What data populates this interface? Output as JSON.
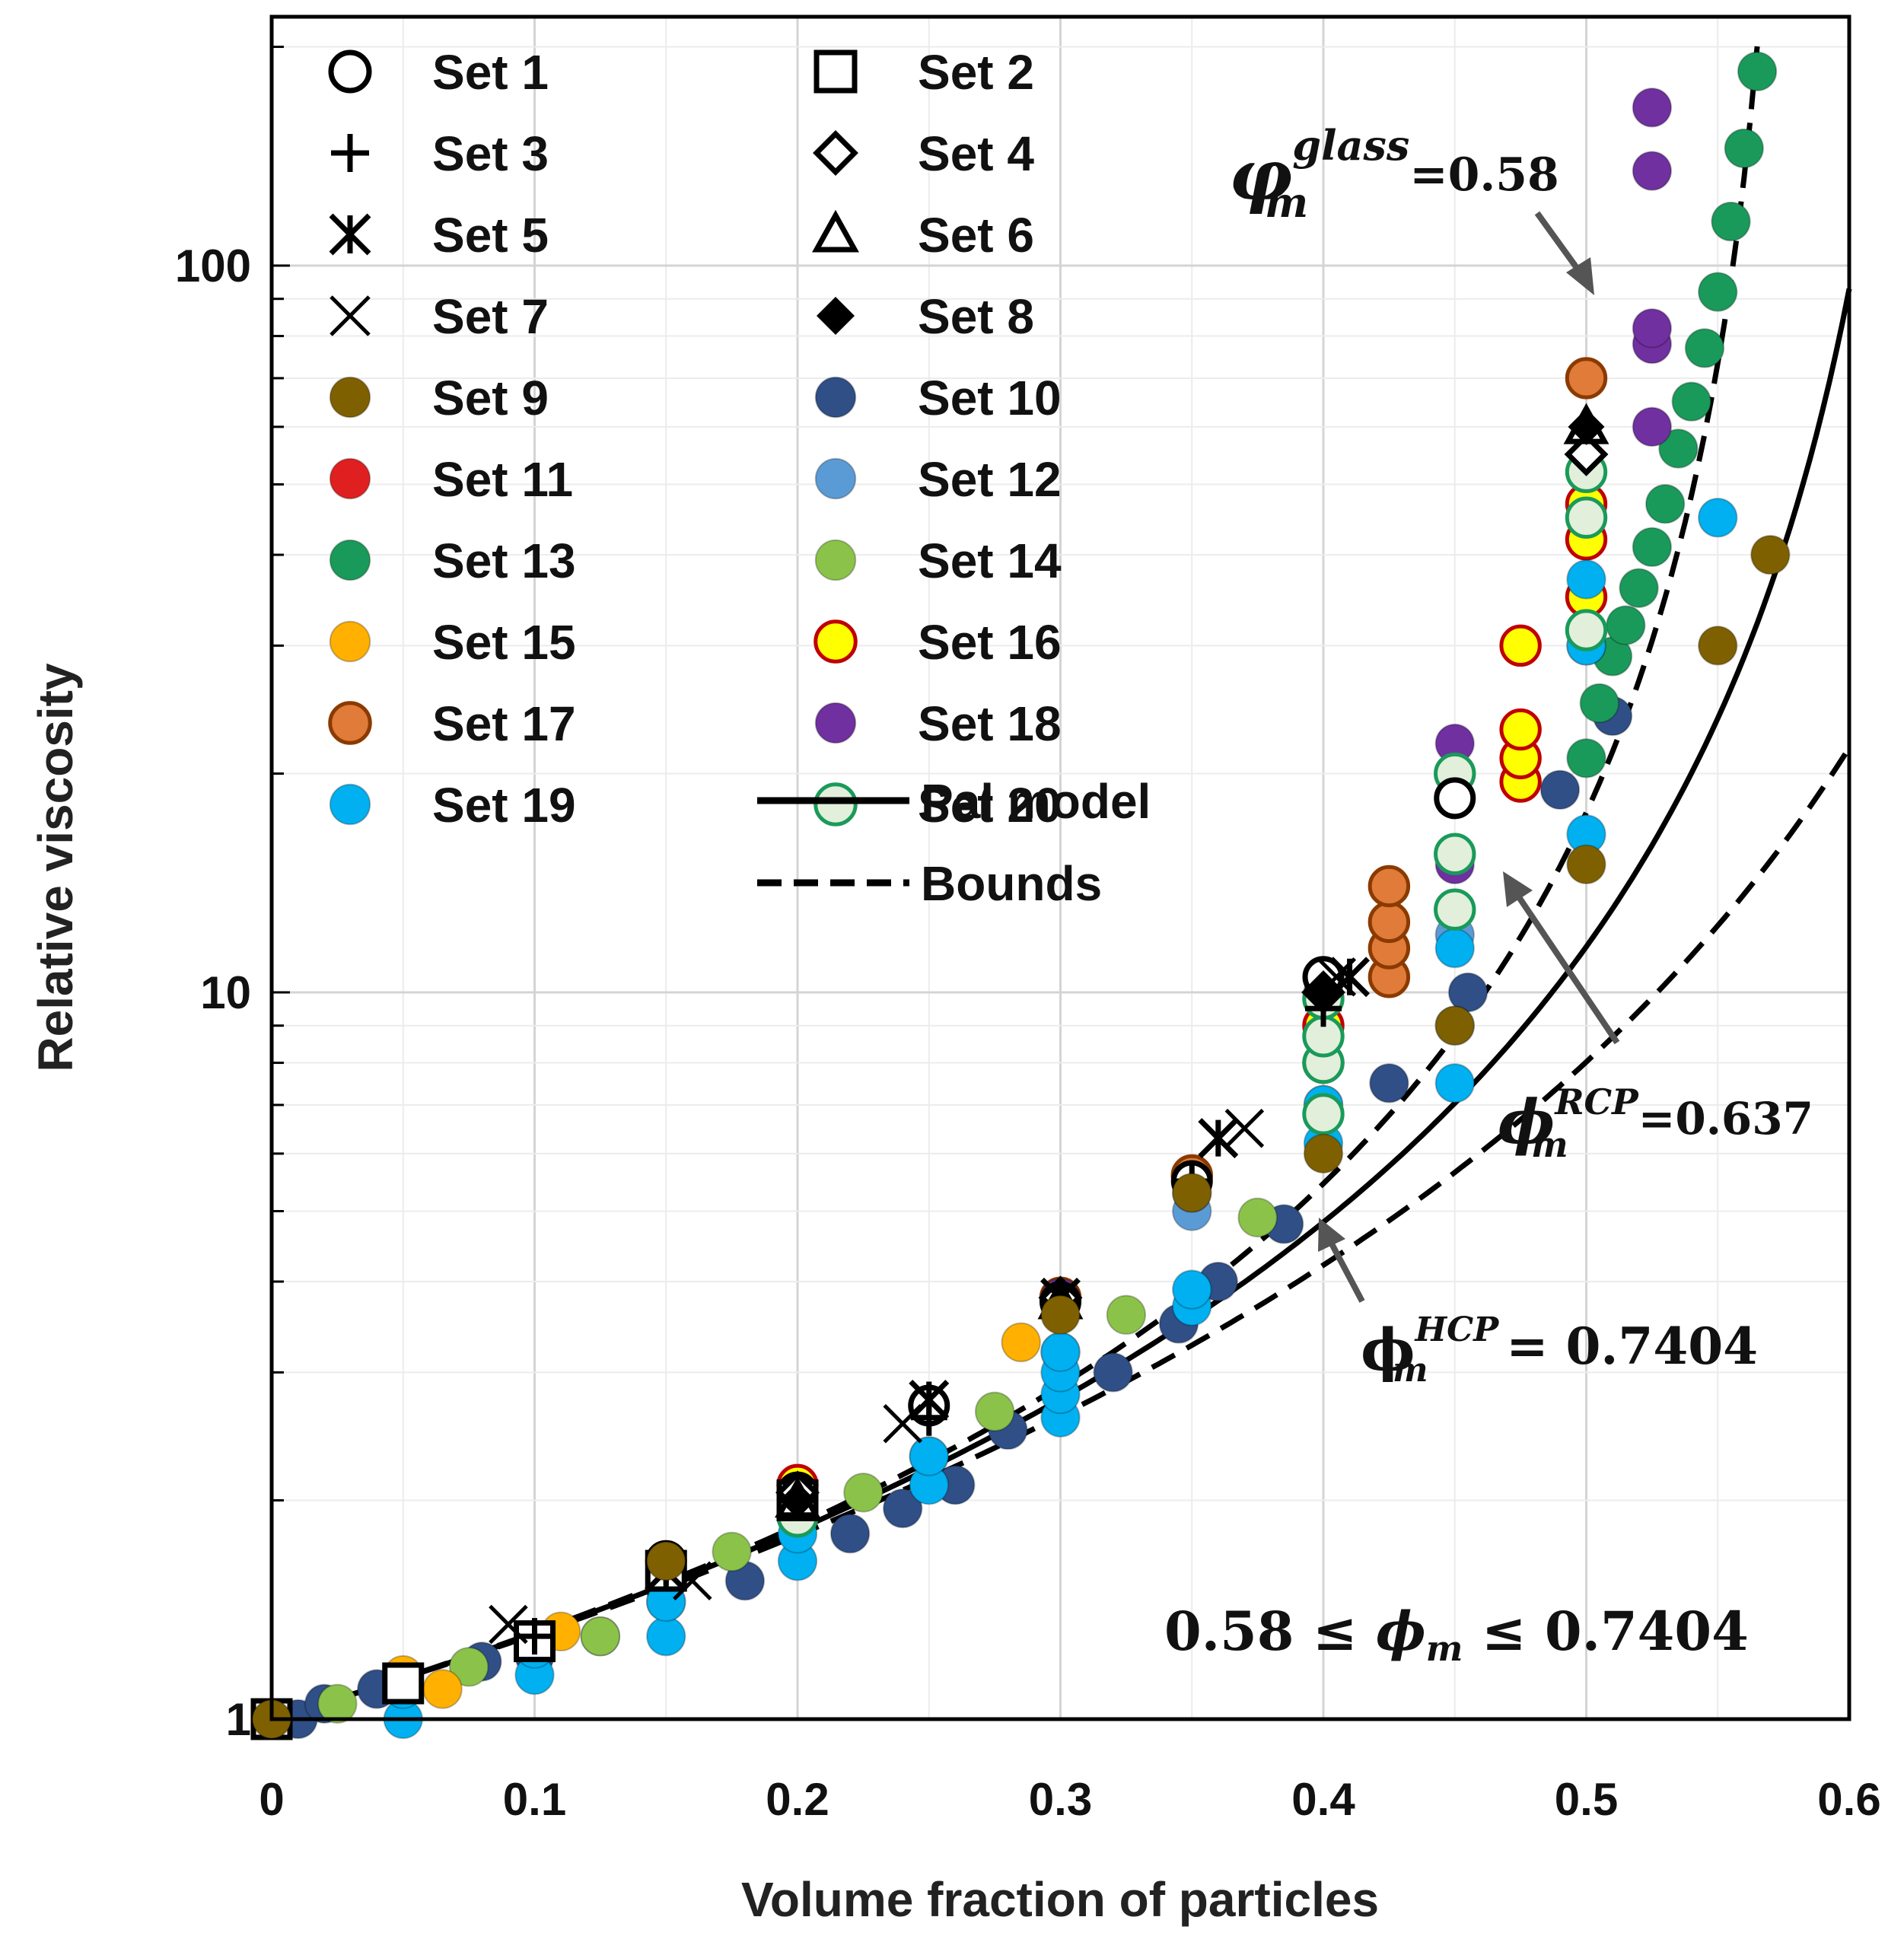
{
  "chart_data": {
    "type": "scatter",
    "title": "",
    "xlabel": "Volume fraction of particles",
    "ylabel": "Relative viscosity",
    "xlim": [
      0,
      0.6
    ],
    "ylim": [
      1,
      220
    ],
    "yscale": "log",
    "grid": true,
    "x_ticks": [
      "0",
      "0.1",
      "0.2",
      "0.3",
      "0.4",
      "0.5",
      "0.6"
    ],
    "y_ticks": [
      "1",
      "10",
      "100"
    ],
    "legend_position": "top-left",
    "series": [
      {
        "name": "Set 1",
        "marker": "circle-open",
        "color": "#000000",
        "points": [
          [
            0,
            1
          ],
          [
            0.1,
            1.28
          ],
          [
            0.15,
            1.65
          ],
          [
            0.2,
            2.05
          ],
          [
            0.25,
            2.7
          ],
          [
            0.3,
            3.75
          ],
          [
            0.35,
            5.5
          ],
          [
            0.4,
            10.5
          ],
          [
            0.45,
            18.5
          ]
        ]
      },
      {
        "name": "Set 2",
        "marker": "square-open",
        "color": "#000000",
        "points": [
          [
            0,
            1
          ],
          [
            0.05,
            1.12
          ],
          [
            0.1,
            1.28
          ],
          [
            0.15,
            1.6
          ],
          [
            0.2,
            2.0
          ]
        ]
      },
      {
        "name": "Set 3",
        "marker": "plus",
        "color": "#000000",
        "points": [
          [
            0.1,
            1.3
          ],
          [
            0.15,
            1.62
          ],
          [
            0.2,
            2.0
          ],
          [
            0.25,
            2.6
          ],
          [
            0.3,
            3.7
          ],
          [
            0.35,
            5.5
          ],
          [
            0.4,
            9.5
          ]
        ]
      },
      {
        "name": "Set 4",
        "marker": "diamond-open",
        "color": "#000000",
        "points": [
          [
            0.2,
            2.05
          ],
          [
            0.3,
            3.8
          ],
          [
            0.4,
            10.0
          ],
          [
            0.5,
            55
          ]
        ]
      },
      {
        "name": "Set 5",
        "marker": "asterisk",
        "color": "#000000",
        "points": [
          [
            0.15,
            1.6
          ],
          [
            0.25,
            2.75
          ],
          [
            0.3,
            3.8
          ],
          [
            0.36,
            6.3
          ],
          [
            0.41,
            10.5
          ]
        ]
      },
      {
        "name": "Set 6",
        "marker": "triangle-open",
        "color": "#000000",
        "points": [
          [
            0.2,
            2.0
          ],
          [
            0.3,
            3.75
          ],
          [
            0.5,
            60
          ]
        ]
      },
      {
        "name": "Set 7",
        "marker": "x",
        "color": "#000000",
        "points": [
          [
            0.09,
            1.35
          ],
          [
            0.16,
            1.55
          ],
          [
            0.24,
            2.55
          ],
          [
            0.37,
            6.5
          ],
          [
            0.405,
            10.5
          ]
        ]
      },
      {
        "name": "Set 8",
        "marker": "diamond-filled",
        "color": "#000000",
        "points": [
          [
            0.2,
            2.0
          ],
          [
            0.3,
            3.7
          ],
          [
            0.4,
            10.0
          ],
          [
            0.5,
            60
          ]
        ]
      },
      {
        "name": "Set 9",
        "marker": "circle-filled",
        "color": "#7F6000",
        "points": [
          [
            0,
            1
          ],
          [
            0.15,
            1.65
          ],
          [
            0.3,
            3.6
          ],
          [
            0.35,
            5.3
          ],
          [
            0.4,
            6.0
          ],
          [
            0.45,
            9.0
          ],
          [
            0.5,
            15
          ],
          [
            0.55,
            30
          ],
          [
            0.57,
            40
          ]
        ]
      },
      {
        "name": "Set 10",
        "marker": "circle-filled",
        "color": "#2F4F86",
        "points": [
          [
            0.01,
            1.0
          ],
          [
            0.02,
            1.05
          ],
          [
            0.04,
            1.1
          ],
          [
            0.08,
            1.2
          ],
          [
            0.1,
            1.22
          ],
          [
            0.125,
            1.3
          ],
          [
            0.18,
            1.55
          ],
          [
            0.22,
            1.8
          ],
          [
            0.24,
            1.95
          ],
          [
            0.26,
            2.1
          ],
          [
            0.28,
            2.5
          ],
          [
            0.32,
            3.0
          ],
          [
            0.345,
            3.5
          ],
          [
            0.36,
            4.0
          ],
          [
            0.385,
            4.8
          ],
          [
            0.425,
            7.5
          ],
          [
            0.455,
            10.0
          ],
          [
            0.49,
            19.0
          ],
          [
            0.51,
            24.0
          ]
        ]
      },
      {
        "name": "Set 11",
        "marker": "circle-filled",
        "color": "#E02020",
        "points": [
          [
            0.2,
            2.05
          ],
          [
            0.3,
            3.8
          ],
          [
            0.4,
            10.0
          ],
          [
            0.5,
            45
          ]
        ]
      },
      {
        "name": "Set 12",
        "marker": "circle-filled",
        "color": "#5B9BD5",
        "points": [
          [
            0.1,
            1.25
          ],
          [
            0.15,
            1.45
          ],
          [
            0.2,
            1.95
          ],
          [
            0.25,
            2.3
          ],
          [
            0.3,
            3.2
          ],
          [
            0.35,
            5.0
          ],
          [
            0.4,
            7.0
          ],
          [
            0.45,
            12.0
          ],
          [
            0.5,
            30
          ]
        ]
      },
      {
        "name": "Set 13",
        "marker": "circle-filled",
        "color": "#1A9A5A",
        "points": [
          [
            0.5,
            21
          ],
          [
            0.505,
            25
          ],
          [
            0.51,
            29
          ],
          [
            0.515,
            32
          ],
          [
            0.52,
            36
          ],
          [
            0.525,
            41
          ],
          [
            0.53,
            47
          ],
          [
            0.535,
            56
          ],
          [
            0.54,
            65
          ],
          [
            0.545,
            77
          ],
          [
            0.55,
            92
          ],
          [
            0.555,
            115
          ],
          [
            0.56,
            145
          ],
          [
            0.565,
            185
          ]
        ]
      },
      {
        "name": "Set 14",
        "marker": "circle-filled",
        "color": "#8BC34A",
        "points": [
          [
            0,
            1
          ],
          [
            0.025,
            1.05
          ],
          [
            0.075,
            1.18
          ],
          [
            0.125,
            1.3
          ],
          [
            0.175,
            1.7
          ],
          [
            0.225,
            2.05
          ],
          [
            0.275,
            2.65
          ],
          [
            0.325,
            3.6
          ],
          [
            0.375,
            4.9
          ]
        ]
      },
      {
        "name": "Set 15",
        "marker": "circle-filled",
        "color": "#FFB000",
        "points": [
          [
            0.05,
            1.15
          ],
          [
            0.065,
            1.1
          ],
          [
            0.11,
            1.32
          ],
          [
            0.285,
            3.3
          ]
        ]
      },
      {
        "name": "Set 16",
        "marker": "circle-filled",
        "color": "#FFFF00",
        "edge": "#C00000",
        "points": [
          [
            0.2,
            2.1
          ],
          [
            0.3,
            3.8
          ],
          [
            0.4,
            9.0
          ],
          [
            0.475,
            19.5
          ],
          [
            0.475,
            21
          ],
          [
            0.475,
            23
          ],
          [
            0.475,
            30
          ],
          [
            0.5,
            35
          ],
          [
            0.5,
            42
          ],
          [
            0.5,
            47
          ]
        ]
      },
      {
        "name": "Set 17",
        "marker": "circle-filled",
        "color": "#E07B39",
        "edge": "#8B3A00",
        "points": [
          [
            0.2,
            2.05
          ],
          [
            0.3,
            3.8
          ],
          [
            0.35,
            5.6
          ],
          [
            0.4,
            8.0
          ],
          [
            0.425,
            10.5
          ],
          [
            0.425,
            11.5
          ],
          [
            0.425,
            12.5
          ],
          [
            0.425,
            14.0
          ],
          [
            0.5,
            70
          ]
        ]
      },
      {
        "name": "Set 18",
        "marker": "circle-filled",
        "color": "#7030A0",
        "points": [
          [
            0.3,
            3.8
          ],
          [
            0.4,
            10.0
          ],
          [
            0.45,
            22
          ],
          [
            0.45,
            15
          ],
          [
            0.525,
            60
          ],
          [
            0.525,
            78
          ],
          [
            0.525,
            82
          ],
          [
            0.525,
            135
          ],
          [
            0.525,
            165
          ]
        ]
      },
      {
        "name": "Set 19",
        "marker": "circle-filled",
        "color": "#00B0F0",
        "points": [
          [
            0.05,
            1.0
          ],
          [
            0.05,
            1.1
          ],
          [
            0.1,
            1.15
          ],
          [
            0.1,
            1.25
          ],
          [
            0.15,
            1.3
          ],
          [
            0.15,
            1.45
          ],
          [
            0.2,
            1.65
          ],
          [
            0.2,
            1.8
          ],
          [
            0.25,
            2.1
          ],
          [
            0.25,
            2.3
          ],
          [
            0.3,
            2.6
          ],
          [
            0.3,
            2.8
          ],
          [
            0.3,
            3.0
          ],
          [
            0.3,
            3.2
          ],
          [
            0.35,
            3.7
          ],
          [
            0.35,
            3.9
          ],
          [
            0.35,
            5.3
          ],
          [
            0.4,
            6.2
          ],
          [
            0.4,
            7.0
          ],
          [
            0.45,
            7.5
          ],
          [
            0.45,
            9.0
          ],
          [
            0.45,
            11.5
          ],
          [
            0.5,
            16.5
          ],
          [
            0.5,
            30
          ],
          [
            0.5,
            37
          ],
          [
            0.55,
            45
          ]
        ]
      },
      {
        "name": "Set 20",
        "marker": "circle-filled",
        "color": "#E2EFDA",
        "edge": "#1A9A5A",
        "points": [
          [
            0.2,
            1.9
          ],
          [
            0.4,
            6.8
          ],
          [
            0.4,
            8.0
          ],
          [
            0.4,
            8.7
          ],
          [
            0.4,
            9.8
          ],
          [
            0.45,
            13.0
          ],
          [
            0.45,
            15.5
          ],
          [
            0.45,
            20.0
          ],
          [
            0.5,
            31.5
          ],
          [
            0.5,
            45.0
          ],
          [
            0.5,
            52.0
          ]
        ]
      }
    ],
    "lines": [
      {
        "name": "Pal model",
        "style": "solid",
        "phi_m": 0.637
      },
      {
        "name": "Bounds",
        "style": "dashed",
        "phi_m": [
          0.58,
          0.7404
        ]
      }
    ],
    "annotations": [
      {
        "symbol": "φ",
        "subscript": "m",
        "superscript": "glass",
        "value": "=0.58"
      },
      {
        "symbol": "ϕ",
        "subscript": "m",
        "superscript": "RCP",
        "value": "=0.637"
      },
      {
        "symbol": "ϕ",
        "subscript": "m",
        "superscript": "HCP",
        "value": "= 0.7404"
      },
      {
        "text_parts": [
          "0.58 ≤ ",
          "ϕ",
          "m",
          " ≤ 0.7404"
        ]
      }
    ]
  },
  "legend": {
    "items": [
      "Set 1",
      "Set 2",
      "Set 3",
      "Set 4",
      "Set 5",
      "Set 6",
      "Set 7",
      "Set 8",
      "Set 9",
      "Set 10",
      "Set 11",
      "Set 12",
      "Set 13",
      "Set 14",
      "Set 15",
      "Set 16",
      "Set 17",
      "Set 18",
      "Set 19",
      "Set 20",
      "Pal model",
      "Bounds"
    ]
  }
}
